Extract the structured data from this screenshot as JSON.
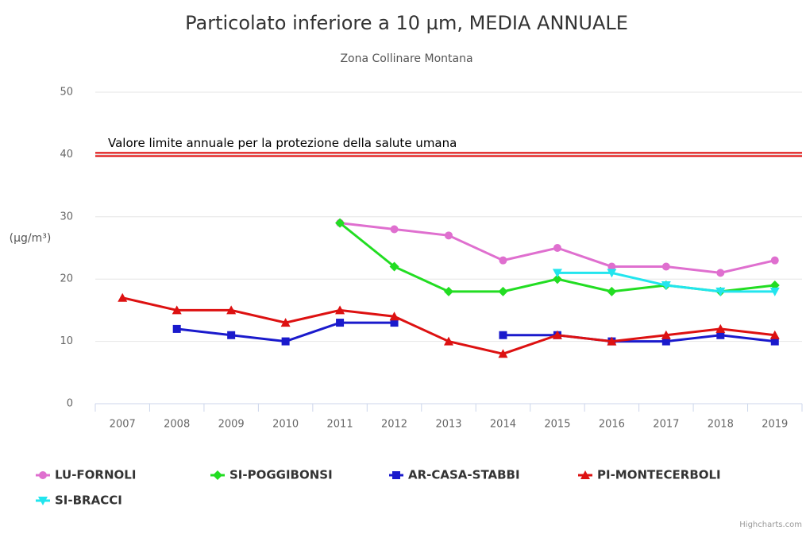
{
  "chart_data": {
    "type": "line",
    "title": "Particolato inferiore a 10 µm, MEDIA ANNUALE",
    "subtitle": "Zona Collinare Montana",
    "y_axis_label": "(µg/m³)",
    "credits": "Highcharts.com",
    "categories": [
      "2007",
      "2008",
      "2009",
      "2010",
      "2011",
      "2012",
      "2013",
      "2014",
      "2015",
      "2016",
      "2017",
      "2018",
      "2019"
    ],
    "ylim": [
      0,
      50
    ],
    "yticks": [
      0,
      10,
      20,
      30,
      40,
      50
    ],
    "grid": true,
    "plot_lines": [
      {
        "value": 40,
        "label": "Valore limite annuale per la protezione della salute umana",
        "color": "#dd0000"
      }
    ],
    "series": [
      {
        "name": "LU-FORNOLI",
        "color": "#df6fcf",
        "marker": "circle",
        "values": [
          null,
          null,
          null,
          null,
          29,
          28,
          27,
          23,
          25,
          22,
          22,
          21,
          23
        ]
      },
      {
        "name": "SI-POGGIBONSI",
        "color": "#22dd22",
        "marker": "diamond",
        "values": [
          null,
          null,
          null,
          null,
          29,
          22,
          18,
          18,
          20,
          18,
          19,
          18,
          19
        ]
      },
      {
        "name": "AR-CASA-STABBI",
        "color": "#1a1acc",
        "marker": "square",
        "values": [
          null,
          12,
          11,
          10,
          13,
          13,
          null,
          11,
          11,
          10,
          10,
          11,
          10
        ]
      },
      {
        "name": "PI-MONTECERBOLI",
        "color": "#dd1111",
        "marker": "triangle",
        "values": [
          17,
          15,
          15,
          13,
          15,
          14,
          10,
          8,
          11,
          10,
          11,
          12,
          11
        ]
      },
      {
        "name": "SI-BRACCI",
        "color": "#22e5ee",
        "marker": "triangle-down",
        "values": [
          null,
          null,
          null,
          null,
          null,
          null,
          null,
          null,
          21,
          21,
          19,
          18,
          18
        ]
      }
    ]
  }
}
